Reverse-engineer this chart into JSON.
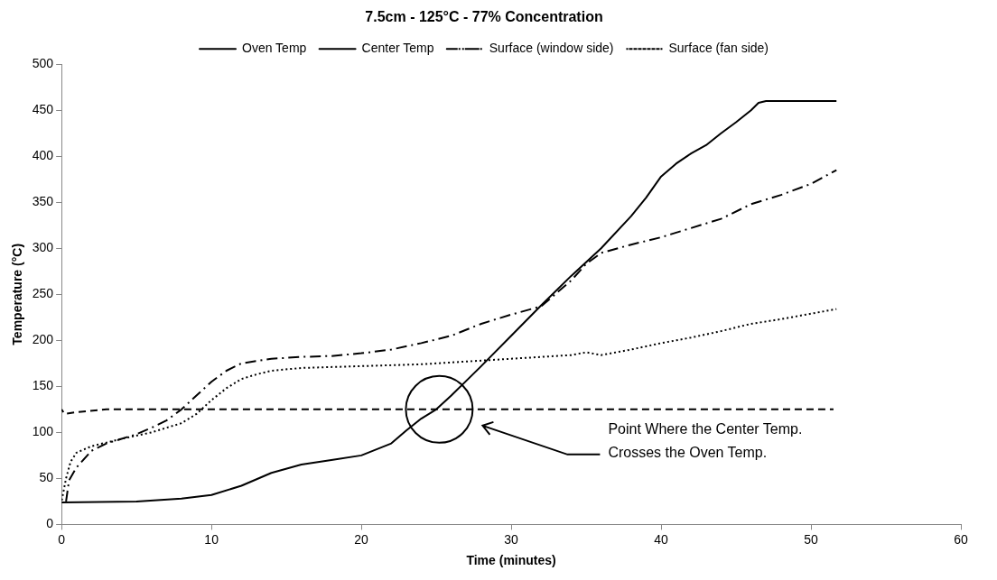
{
  "chart_data": {
    "type": "line",
    "title": "7.5cm - 125°C - 77% Concentration",
    "xlabel": "Time (minutes)",
    "ylabel": "Temperature (°C)",
    "xlim": [
      0,
      60
    ],
    "xticks": [
      0,
      10,
      20,
      30,
      40,
      50,
      60
    ],
    "ylim": [
      0,
      500
    ],
    "yticks": [
      0,
      50,
      100,
      150,
      200,
      250,
      300,
      350,
      400,
      450,
      500
    ],
    "grid": false,
    "legend": "top",
    "marker": "none",
    "annotations": [
      "Point Where the Center Temp.\nCrosses the Oven Temp."
    ],
    "series": [
      {
        "name": "Oven Temp",
        "color": "#000000",
        "line_style": "dashed",
        "x": [
          0,
          0.2,
          1,
          3,
          51.5
        ],
        "values": [
          125,
          120,
          122,
          125,
          125
        ]
      },
      {
        "name": "Center Temp",
        "color": "#000000",
        "line_style": "solid",
        "x": [
          0,
          5,
          8,
          10,
          12,
          14,
          16,
          18,
          20,
          22,
          23,
          24,
          25,
          26,
          28,
          30,
          32,
          34,
          36,
          38,
          39,
          40,
          41,
          42,
          43,
          44,
          45,
          46,
          46.5,
          47,
          51.7
        ],
        "values": [
          24,
          25,
          28,
          32,
          42,
          56,
          65,
          70,
          75,
          88,
          102,
          115,
          125,
          140,
          172,
          205,
          238,
          270,
          300,
          335,
          355,
          378,
          392,
          403,
          412,
          425,
          437,
          450,
          458,
          460,
          460
        ]
      },
      {
        "name": "Surface (window side)",
        "color": "#000000",
        "line_style": "dashdot",
        "x": [
          0,
          0.3,
          0.5,
          1,
          2,
          3,
          4,
          5,
          6,
          7,
          8,
          9,
          10,
          11,
          12,
          14,
          16,
          18,
          20,
          22,
          24,
          26,
          28,
          30,
          32,
          34,
          35,
          36,
          38,
          40,
          42,
          44,
          46,
          48,
          50,
          51.7
        ],
        "values": [
          25,
          25,
          48,
          62,
          80,
          88,
          93,
          98,
          105,
          113,
          125,
          140,
          155,
          167,
          175,
          180,
          182,
          183,
          186,
          190,
          197,
          205,
          218,
          228,
          237,
          265,
          283,
          295,
          304,
          312,
          322,
          332,
          348,
          358,
          370,
          385
        ]
      },
      {
        "name": "Surface (fan side)",
        "color": "#000000",
        "line_style": "dotted",
        "x": [
          0,
          0.3,
          0.6,
          1,
          2,
          4,
          6,
          8,
          9,
          10,
          11,
          12,
          13,
          14,
          16,
          20,
          24,
          28,
          32,
          34,
          35,
          36,
          38,
          40,
          42,
          44,
          46,
          48,
          50,
          51.7
        ],
        "values": [
          25,
          50,
          68,
          78,
          85,
          93,
          100,
          110,
          120,
          135,
          148,
          158,
          163,
          167,
          170,
          172,
          174,
          178,
          182,
          184,
          187,
          184,
          190,
          197,
          203,
          210,
          218,
          223,
          229,
          234
        ]
      }
    ]
  }
}
